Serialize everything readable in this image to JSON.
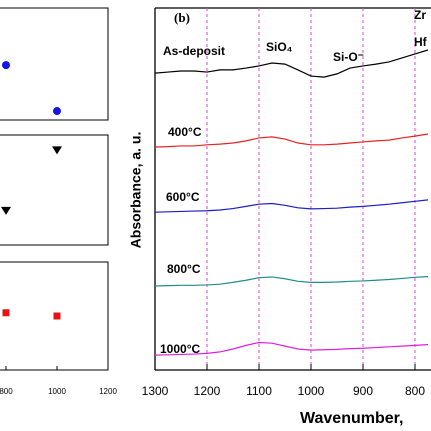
{
  "chart_data": [
    {
      "type": "scatter",
      "marker": "circle",
      "color": "#1414e6",
      "xlim": [
        600,
        1200
      ],
      "ylim": [
        0,
        1
      ],
      "series": [
        {
          "x": [
            800,
            1000
          ],
          "values": [
            0.49,
            0.08
          ]
        }
      ]
    },
    {
      "type": "scatter",
      "marker": "triangle",
      "color": "#000000",
      "xlim": [
        600,
        1200
      ],
      "ylim": [
        0,
        1
      ],
      "series": [
        {
          "x": [
            800,
            1000
          ],
          "values": [
            0.31,
            0.86
          ]
        }
      ]
    },
    {
      "type": "scatter",
      "marker": "square",
      "color": "#e61414",
      "xlim": [
        600,
        1200
      ],
      "ylim": [
        0,
        1
      ],
      "xticks": [
        800,
        1000,
        1200
      ],
      "series": [
        {
          "x": [
            800,
            1000
          ],
          "values": [
            0.53,
            0.5
          ]
        }
      ]
    },
    {
      "type": "line",
      "title": "(b)",
      "x_label": "Wavenumber,",
      "y_label": "Absorbance, a. u.",
      "xlim": [
        1300,
        700
      ],
      "ylim": [
        0,
        10
      ],
      "xticks": [
        1300,
        1200,
        1100,
        1000,
        900,
        800
      ],
      "vlines": [
        1200,
        1100,
        1000,
        900,
        800
      ],
      "vline_color": "#e040e0",
      "annotations": [
        "SiO₄",
        "Si-O⁻",
        "Zr",
        "Hf"
      ],
      "x": [
        1300,
        1275,
        1250,
        1225,
        1200,
        1175,
        1150,
        1125,
        1100,
        1075,
        1050,
        1025,
        1000,
        975,
        950,
        925,
        900,
        875,
        850,
        825,
        800,
        775
      ],
      "series": [
        {
          "name": "As-deposit",
          "color": "#000000",
          "values": [
            8.2,
            8.23,
            8.26,
            8.26,
            8.23,
            8.29,
            8.29,
            8.34,
            8.4,
            8.48,
            8.45,
            8.29,
            8.12,
            8.09,
            8.18,
            8.34,
            8.4,
            8.45,
            8.51,
            8.62,
            8.73,
            8.84
          ]
        },
        {
          "name": "400°C",
          "color": "#e8231f",
          "values": [
            6.16,
            6.17,
            6.19,
            6.19,
            6.22,
            6.24,
            6.27,
            6.33,
            6.41,
            6.44,
            6.38,
            6.27,
            6.22,
            6.22,
            6.24,
            6.27,
            6.3,
            6.33,
            6.35,
            6.41,
            6.46,
            6.52
          ]
        },
        {
          "name": "600°C",
          "color": "#1c1cc8",
          "values": [
            4.36,
            4.37,
            4.38,
            4.39,
            4.4,
            4.42,
            4.46,
            4.52,
            4.58,
            4.6,
            4.55,
            4.48,
            4.45,
            4.46,
            4.47,
            4.5,
            4.52,
            4.55,
            4.58,
            4.62,
            4.66,
            4.7
          ]
        },
        {
          "name": "800°C",
          "color": "#208c8c",
          "values": [
            2.32,
            2.33,
            2.34,
            2.34,
            2.35,
            2.37,
            2.42,
            2.48,
            2.55,
            2.57,
            2.52,
            2.45,
            2.42,
            2.42,
            2.43,
            2.45,
            2.46,
            2.48,
            2.5,
            2.53,
            2.56,
            2.58
          ]
        },
        {
          "name": "1000°C",
          "color": "#e020e0",
          "values": [
            0.41,
            0.42,
            0.43,
            0.44,
            0.46,
            0.5,
            0.58,
            0.68,
            0.76,
            0.74,
            0.66,
            0.58,
            0.55,
            0.56,
            0.57,
            0.59,
            0.6,
            0.62,
            0.64,
            0.66,
            0.68,
            0.7
          ]
        }
      ]
    }
  ]
}
